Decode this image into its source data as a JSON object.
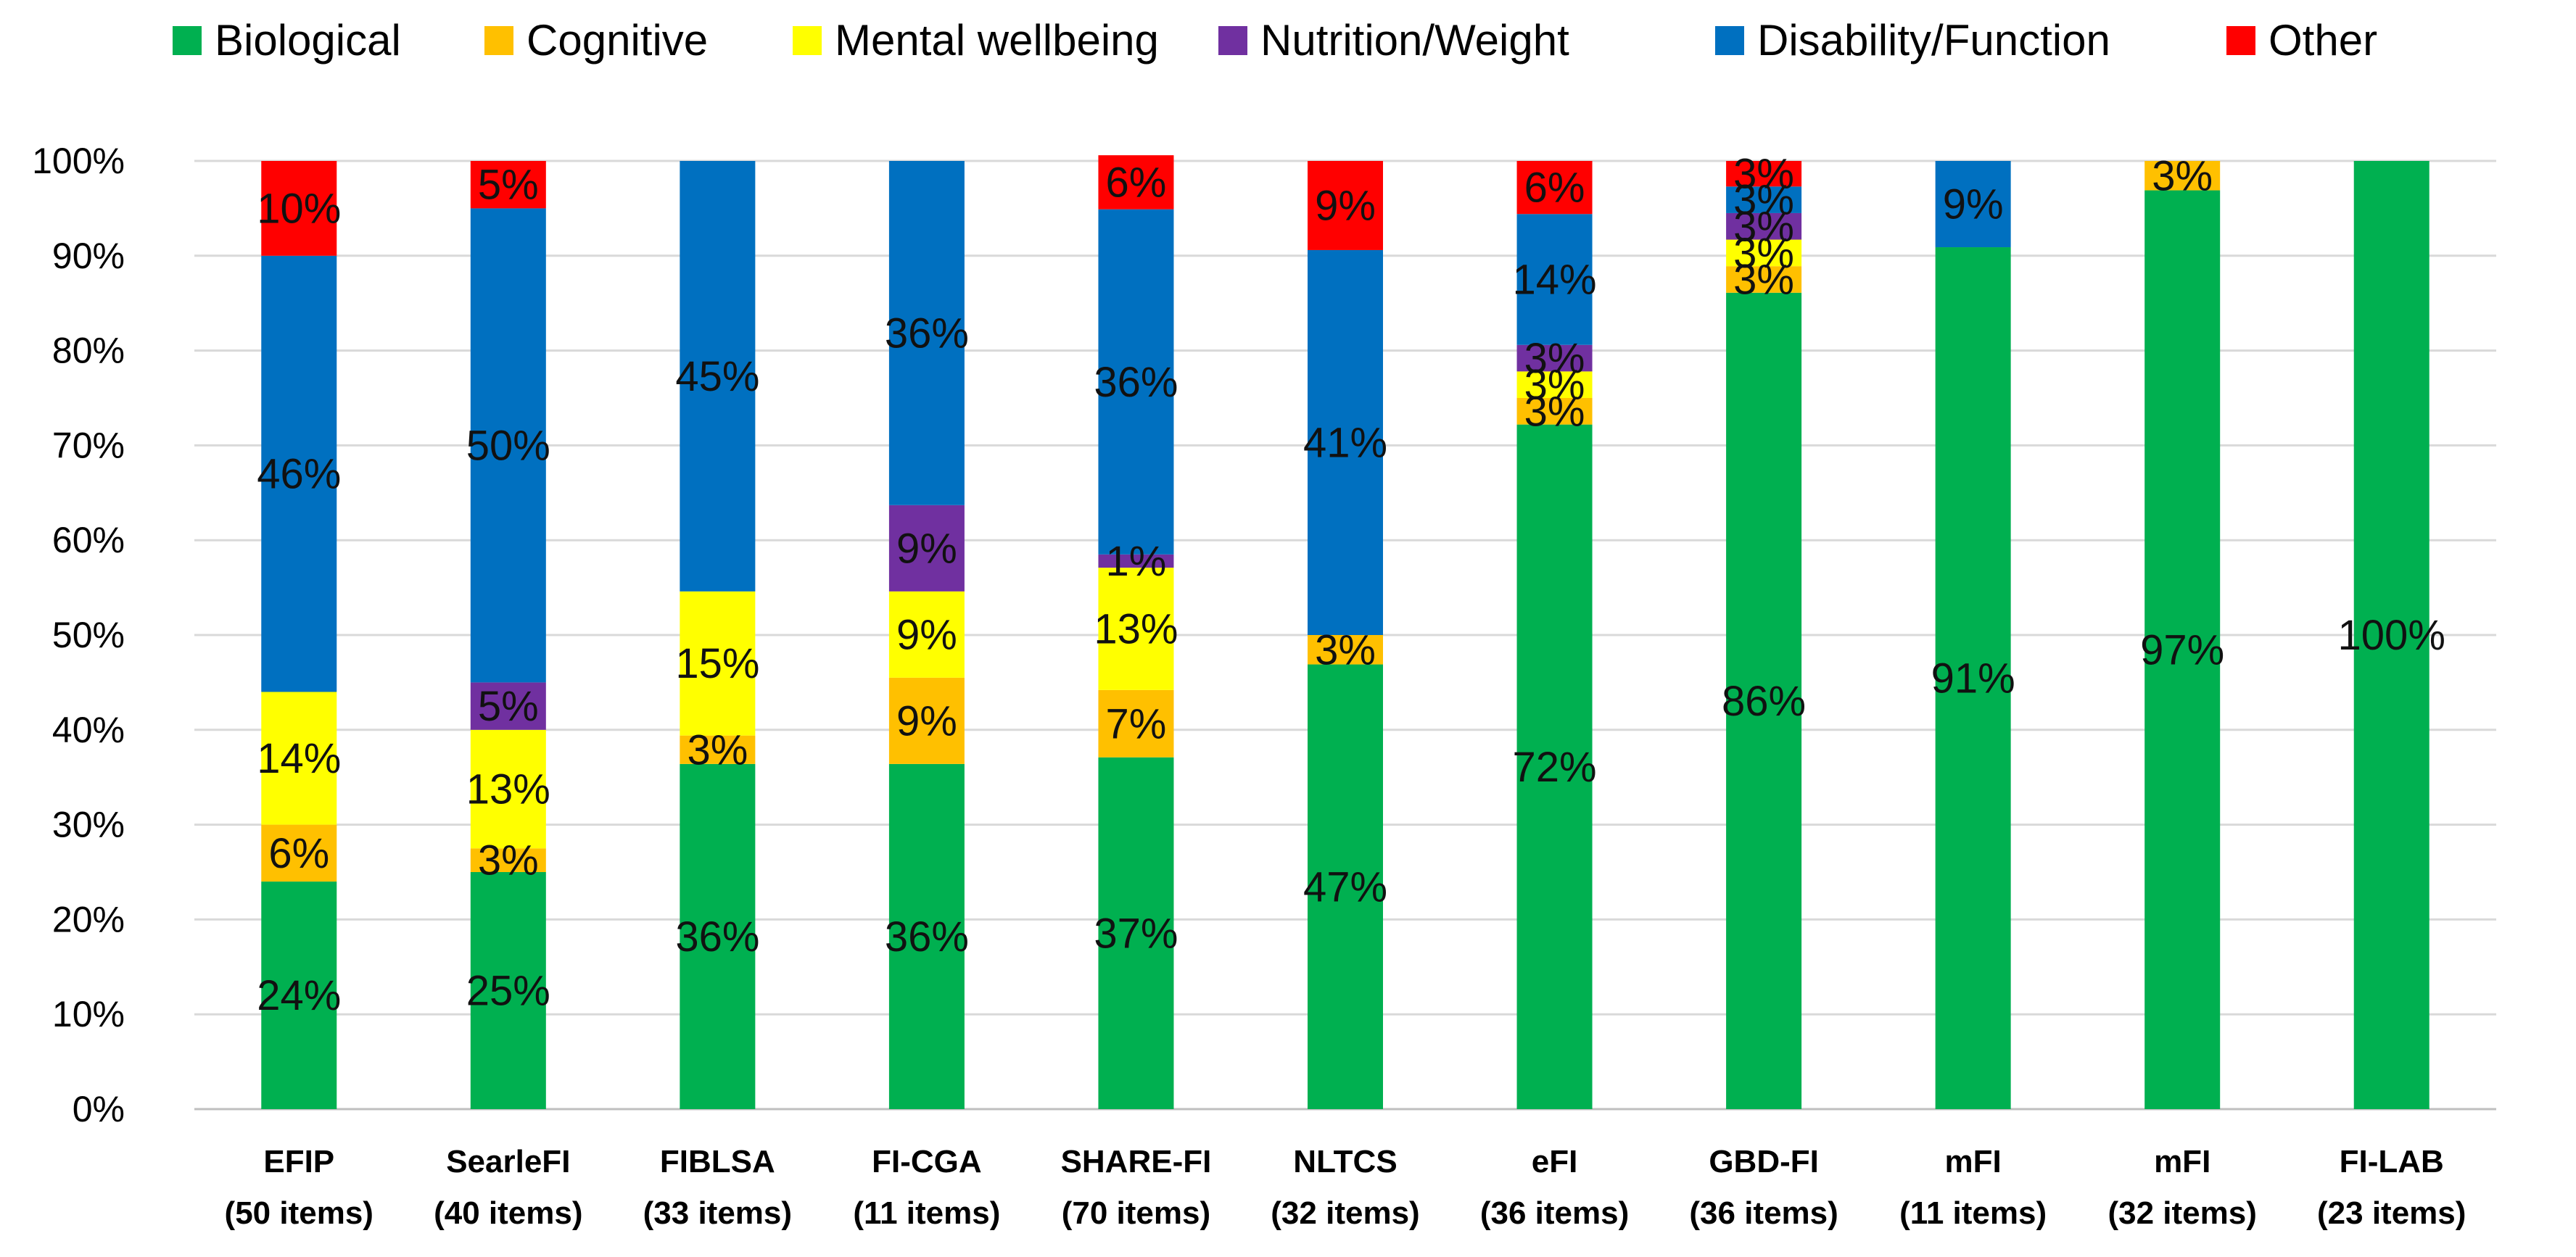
{
  "chart_data": {
    "type": "stacked-bar-100",
    "title": "",
    "xlabel": "",
    "ylabel": "",
    "ylim": [
      0,
      100
    ],
    "y_ticks": [
      "0%",
      "10%",
      "20%",
      "30%",
      "40%",
      "50%",
      "60%",
      "70%",
      "80%",
      "90%",
      "100%"
    ],
    "grid": true,
    "legend_position": "top",
    "categories": [
      {
        "name": "EFIP",
        "items": "(50 items)"
      },
      {
        "name": "SearleFI",
        "items": "(40 items)"
      },
      {
        "name": "FIBLSA",
        "items": "(33 items)"
      },
      {
        "name": "FI-CGA",
        "items": "(11 items)"
      },
      {
        "name": "SHARE-FI",
        "items": "(70 items)"
      },
      {
        "name": "NLTCS",
        "items": "(32 items)"
      },
      {
        "name": "eFI",
        "items": "(36 items)"
      },
      {
        "name": "GBD-FI",
        "items": "(36 items)"
      },
      {
        "name": "mFI",
        "items": "(11 items)"
      },
      {
        "name": "mFI",
        "items": "(32 items)"
      },
      {
        "name": "FI-LAB",
        "items": "(23 items)"
      }
    ],
    "series": [
      {
        "name": "Biological",
        "color": "#00b050",
        "values": [
          24,
          25,
          36.4,
          36.4,
          37.1,
          46.9,
          72.2,
          86.1,
          90.9,
          96.9,
          100
        ],
        "labels": [
          "24%",
          "25%",
          "36%",
          "36%",
          "37%",
          "47%",
          "72%",
          "86%",
          "91%",
          "97%",
          "100%"
        ]
      },
      {
        "name": "Cognitive",
        "color": "#ffc000",
        "values": [
          6,
          2.5,
          3,
          9.1,
          7.1,
          3.1,
          2.8,
          2.8,
          0,
          3.1,
          0
        ],
        "labels": [
          "6%",
          "3%",
          "3%",
          "9%",
          "7%",
          "3%",
          "3%",
          "3%",
          "",
          "3%",
          ""
        ]
      },
      {
        "name": "Mental wellbeing",
        "color": "#ffff00",
        "values": [
          14,
          12.5,
          15.2,
          9.1,
          12.9,
          0,
          2.8,
          2.8,
          0,
          0,
          0
        ],
        "labels": [
          "14%",
          "13%",
          "15%",
          "9%",
          "13%",
          "",
          "3%",
          "3%",
          "",
          "",
          ""
        ]
      },
      {
        "name": "Nutrition/Weight",
        "color": "#7030a0",
        "values": [
          0,
          5,
          0,
          9.1,
          1.4,
          0,
          2.8,
          2.8,
          0,
          0,
          0
        ],
        "labels": [
          "",
          "5%",
          "",
          "9%",
          "1%",
          "",
          "3%",
          "3%",
          "",
          "",
          ""
        ]
      },
      {
        "name": "Disability/Function",
        "color": "#0070c0",
        "values": [
          46,
          50,
          45.4,
          36.3,
          36.4,
          40.6,
          13.8,
          2.8,
          9.1,
          0,
          0
        ],
        "labels": [
          "46%",
          "50%",
          "45%",
          "36%",
          "36%",
          "41%",
          "14%",
          "3%",
          "9%",
          "",
          ""
        ]
      },
      {
        "name": "Other",
        "color": "#ff0000",
        "values": [
          10,
          5,
          0,
          0,
          5.7,
          9.4,
          5.6,
          2.7,
          0,
          0,
          0
        ],
        "labels": [
          "10%",
          "5%",
          "",
          "",
          "6%",
          "9%",
          "6%",
          "3%",
          "",
          "",
          ""
        ]
      }
    ]
  }
}
